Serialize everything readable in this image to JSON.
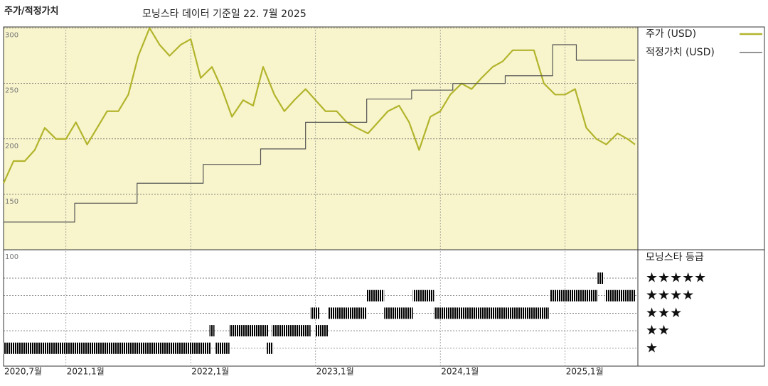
{
  "chart_data": {
    "type": "line",
    "title": "주가/적정가치",
    "subtitle": "모닝스타 데이터 기준일 22. 7월 2025",
    "xlim": [
      2020.5,
      2025.583
    ],
    "xticks": [
      {
        "value": 2020.5,
        "label": "2020,7월"
      },
      {
        "value": 2021,
        "label": "2021,1월"
      },
      {
        "value": 2022,
        "label": "2022,1월"
      },
      {
        "value": 2023,
        "label": "2023,1월"
      },
      {
        "value": 2024,
        "label": "2024,1월"
      },
      {
        "value": 2025,
        "label": "2025,1월"
      }
    ],
    "ylim": [
      100,
      301
    ],
    "yticks": [
      100,
      150,
      200,
      250,
      300
    ],
    "grid": true,
    "series": [
      {
        "name": "주가 (USD)",
        "color": "#b2b42c",
        "x": [
          2020.5,
          2020.58,
          2020.67,
          2020.75,
          2020.83,
          2020.92,
          2021,
          2021.08,
          2021.17,
          2021.25,
          2021.33,
          2021.42,
          2021.5,
          2021.58,
          2021.67,
          2021.75,
          2021.83,
          2021.92,
          2022,
          2022.08,
          2022.17,
          2022.25,
          2022.33,
          2022.42,
          2022.5,
          2022.58,
          2022.67,
          2022.75,
          2022.83,
          2022.92,
          2023,
          2023.08,
          2023.17,
          2023.25,
          2023.33,
          2023.42,
          2023.5,
          2023.58,
          2023.67,
          2023.75,
          2023.83,
          2023.92,
          2024,
          2024.08,
          2024.17,
          2024.25,
          2024.33,
          2024.42,
          2024.5,
          2024.58,
          2024.67,
          2024.75,
          2024.83,
          2024.92,
          2025,
          2025.08,
          2025.17,
          2025.25,
          2025.33,
          2025.42,
          2025.5,
          2025.56
        ],
        "values": [
          160,
          180,
          180,
          190,
          210,
          200,
          200,
          215,
          195,
          210,
          225,
          225,
          240,
          275,
          300,
          285,
          275,
          285,
          290,
          255,
          265,
          245,
          220,
          235,
          230,
          265,
          240,
          225,
          235,
          245,
          235,
          225,
          225,
          215,
          210,
          205,
          215,
          225,
          230,
          215,
          190,
          220,
          225,
          240,
          250,
          245,
          255,
          265,
          270,
          280,
          280,
          280,
          250,
          240,
          240,
          245,
          210,
          200,
          195,
          205,
          200,
          195
        ]
      },
      {
        "name": "적정가치 (USD)",
        "color": "#555555",
        "step": true,
        "x": [
          2020.5,
          2021.07,
          2021.57,
          2022.1,
          2022.56,
          2022.92,
          2023.41,
          2023.77,
          2024.1,
          2024.52,
          2024.9,
          2025.09,
          2025.56
        ],
        "values": [
          125,
          142,
          160,
          177,
          191,
          215,
          236,
          244,
          250,
          257,
          285,
          271,
          271
        ]
      }
    ],
    "ratings": {
      "title": "모닝스타 등급",
      "labels": [
        "★★★★★",
        "★★★★",
        "★★★",
        "★★",
        "★"
      ],
      "levels": [
        5,
        4,
        3,
        2,
        1
      ],
      "colors": {
        "5": "#3f8a6a",
        "other": "#222222"
      },
      "periods": [
        {
          "stars": 1,
          "start": 2020.5,
          "end": 2022.16
        },
        {
          "stars": 2,
          "start": 2022.15,
          "end": 2022.19
        },
        {
          "stars": 1,
          "start": 2022.2,
          "end": 2022.31
        },
        {
          "stars": 2,
          "start": 2022.31,
          "end": 2022.62
        },
        {
          "stars": 1,
          "start": 2022.61,
          "end": 2022.66
        },
        {
          "stars": 2,
          "start": 2022.65,
          "end": 2022.96
        },
        {
          "stars": 3,
          "start": 2022.96,
          "end": 2023.03
        },
        {
          "stars": 2,
          "start": 2023.0,
          "end": 2023.1
        },
        {
          "stars": 3,
          "start": 2023.1,
          "end": 2023.41
        },
        {
          "stars": 4,
          "start": 2023.41,
          "end": 2023.55
        },
        {
          "stars": 3,
          "start": 2023.55,
          "end": 2023.78
        },
        {
          "stars": 4,
          "start": 2023.78,
          "end": 2023.95
        },
        {
          "stars": 3,
          "start": 2023.95,
          "end": 2024.87
        },
        {
          "stars": 4,
          "start": 2024.88,
          "end": 2025.26
        },
        {
          "stars": 5,
          "start": 2025.26,
          "end": 2025.31
        },
        {
          "stars": 4,
          "start": 2025.32,
          "end": 2025.56
        }
      ]
    }
  }
}
